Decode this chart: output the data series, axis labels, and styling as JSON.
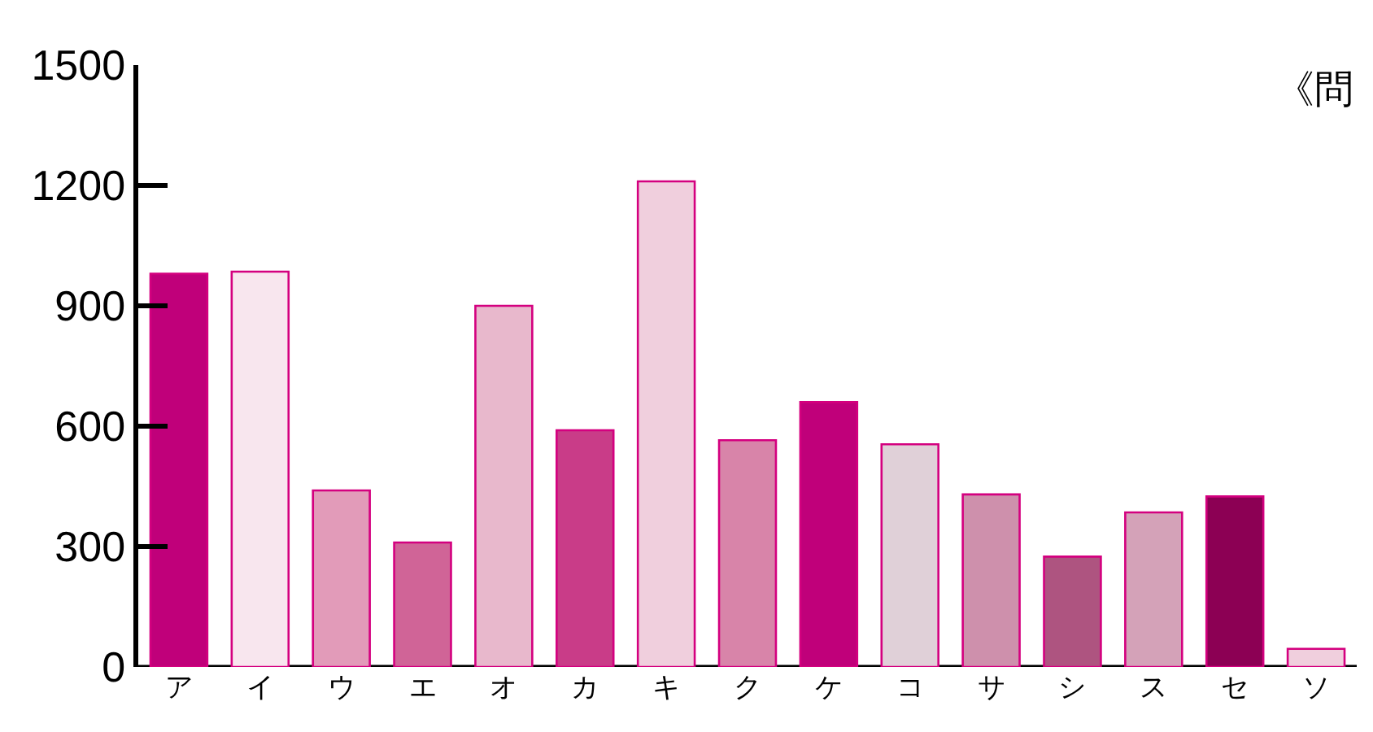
{
  "chart_data": {
    "type": "bar",
    "categories": [
      "ア",
      "イ",
      "ウ",
      "エ",
      "オ",
      "カ",
      "キ",
      "ク",
      "ケ",
      "コ",
      "サ",
      "シ",
      "ス",
      "セ",
      "ソ"
    ],
    "values": [
      980,
      985,
      440,
      310,
      900,
      590,
      1210,
      565,
      660,
      555,
      430,
      275,
      385,
      425,
      45
    ],
    "colors": [
      "#c0007a",
      "#f8e6ee",
      "#e29bb9",
      "#d06497",
      "#e8b8cc",
      "#c93c88",
      "#f0cfdd",
      "#d884a9",
      "#c0007a",
      "#e0d0d8",
      "#ce90ac",
      "#ae5480",
      "#d4a2b8",
      "#8c0054",
      "#f0cfdd"
    ],
    "ylim": [
      0,
      1500
    ],
    "yticks": [
      0,
      300,
      600,
      900,
      1200,
      1500
    ],
    "annotations": [
      "《問"
    ]
  }
}
